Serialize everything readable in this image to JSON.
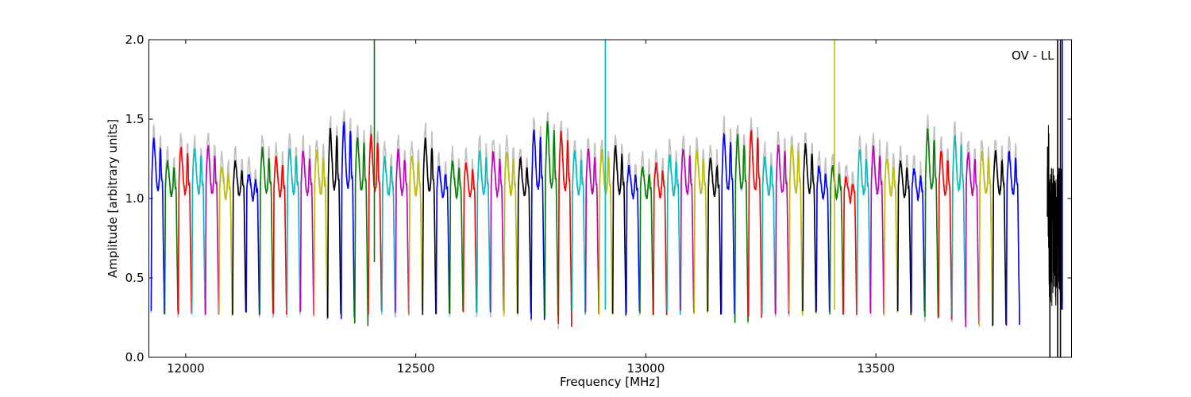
{
  "chart_data": {
    "type": "line",
    "title": "",
    "xlabel": "Frequency [MHz]",
    "ylabel": "Amplitude [arbitrary units]",
    "xlim": [
      11920,
      13925
    ],
    "ylim": [
      0.0,
      2.0
    ],
    "xticks": [
      12000,
      12500,
      13000,
      13500
    ],
    "xtick_labels": [
      "12000",
      "12500",
      "13000",
      "13500"
    ],
    "yticks": [
      0.0,
      0.5,
      1.0,
      1.5,
      2.0
    ],
    "ytick_labels": [
      "0.0",
      "0.5",
      "1.0",
      "1.5",
      "2.0"
    ],
    "grid": false,
    "legend": "none",
    "annotation": "OV - LL",
    "colors": [
      "#0000ff",
      "#008000",
      "#ff0000",
      "#00bfbf",
      "#bf00bf",
      "#bfbf00",
      "#000000"
    ],
    "background_color": "#c0c0c0",
    "segment_width_mhz": 29.5,
    "segment_start_mhz": 11925,
    "segment_count": 64,
    "segment_peak_amplitudes": [
      1.38,
      1.24,
      1.33,
      1.32,
      1.33,
      1.2,
      1.23,
      1.16,
      1.32,
      1.26,
      1.32,
      1.3,
      1.3,
      1.44,
      1.48,
      1.4,
      1.4,
      1.26,
      1.3,
      1.28,
      1.38,
      1.2,
      1.23,
      1.22,
      1.3,
      1.3,
      1.3,
      1.25,
      1.44,
      1.48,
      1.42,
      1.3,
      1.32,
      1.3,
      1.33,
      1.2,
      1.2,
      1.22,
      1.28,
      1.32,
      1.3,
      1.26,
      1.42,
      1.4,
      1.43,
      1.26,
      1.34,
      1.34,
      1.34,
      1.2,
      1.2,
      1.13,
      1.3,
      1.32,
      1.26,
      1.24,
      1.18,
      1.44,
      1.3,
      1.4,
      1.3,
      1.3,
      1.3,
      1.3
    ],
    "segment_dip_amplitudes": [
      0.28,
      0.28,
      0.28,
      0.28,
      0.28,
      0.28,
      0.28,
      0.28,
      0.28,
      0.28,
      0.28,
      0.28,
      0.25,
      0.26,
      0.25,
      0.2,
      0.28,
      0.28,
      0.28,
      0.28,
      0.28,
      0.28,
      0.28,
      0.28,
      0.28,
      0.28,
      0.28,
      0.27,
      0.25,
      0.26,
      0.2,
      0.28,
      0.28,
      0.28,
      0.28,
      0.28,
      0.28,
      0.28,
      0.28,
      0.28,
      0.28,
      0.28,
      0.26,
      0.22,
      0.26,
      0.28,
      0.28,
      0.28,
      0.28,
      0.28,
      0.28,
      0.28,
      0.28,
      0.28,
      0.28,
      0.28,
      0.28,
      0.25,
      0.25,
      0.25,
      0.2,
      0.2,
      0.2,
      0.2
    ],
    "spikes": [
      {
        "x": 12410,
        "y_from": 0.6,
        "y_to": 2.0,
        "color": "#008000"
      },
      {
        "x": 12912,
        "y_from": 0.3,
        "y_to": 2.0,
        "color": "#00bfbf"
      },
      {
        "x": 13410,
        "y_from": 0.3,
        "y_to": 2.0,
        "color": "#bfbf00"
      },
      {
        "x": 13878,
        "y_from": 0.0,
        "y_to": 1.0,
        "color": "#000000"
      },
      {
        "x": 13895,
        "y_from": 0.0,
        "y_to": 2.0,
        "color": "#000000"
      },
      {
        "x": 13901,
        "y_from": 0.0,
        "y_to": 2.0,
        "color": "#000000"
      },
      {
        "x": 13905,
        "y_from": 0.3,
        "y_to": 2.0,
        "color": "#0000ff"
      }
    ]
  }
}
